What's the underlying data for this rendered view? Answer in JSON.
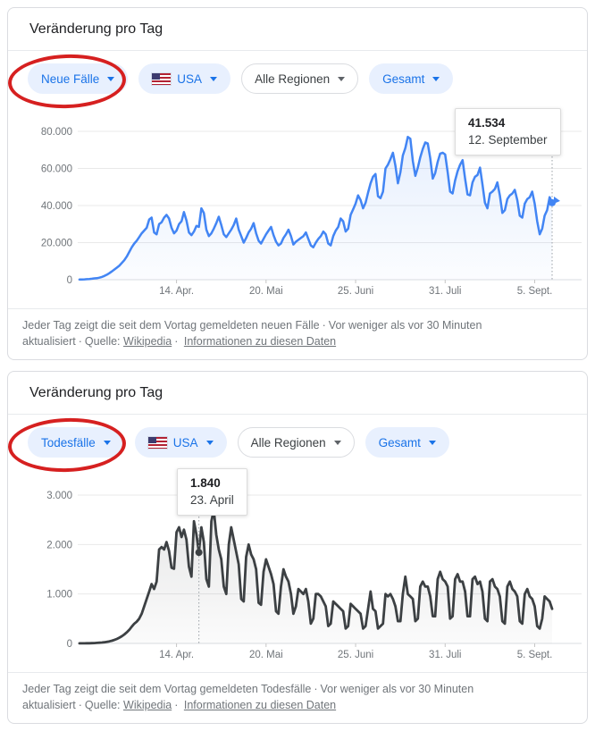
{
  "colors": {
    "cases_line": "#4285f4",
    "deaths_line": "#3c4043",
    "annotation_red": "#d62020",
    "pill_blue_bg": "#e8f0fe",
    "pill_blue_text": "#1a73e8",
    "grid": "#e9e9e9",
    "axis_text": "#70757a"
  },
  "cards": [
    {
      "title": "Veränderung pro Tag",
      "filters": {
        "metric": "Neue Fälle",
        "country": "USA",
        "region": "Alle Regionen",
        "scope": "Gesamt"
      },
      "tooltip": {
        "value": "41.534",
        "date": "12. September"
      },
      "footer": {
        "description": "Jeder Tag zeigt die seit dem Vortag gemeldeten neuen Fälle",
        "updated": "Vor weniger als vor 30 Minuten aktualisiert",
        "sep": "·",
        "source_label": "Quelle:",
        "source_link": "Wikipedia",
        "info_link": "Informationen zu diesen Daten"
      }
    },
    {
      "title": "Veränderung pro Tag",
      "filters": {
        "metric": "Todesfälle",
        "country": "USA",
        "region": "Alle Regionen",
        "scope": "Gesamt"
      },
      "tooltip": {
        "value": "1.840",
        "date": "23. April"
      },
      "footer": {
        "description": "Jeder Tag zeigt die seit dem Vortag gemeldeten Todesfälle",
        "updated": "Vor weniger als vor 30 Minuten aktualisiert",
        "sep": "·",
        "source_label": "Quelle:",
        "source_link": "Wikipedia",
        "info_link": "Informationen zu diesen Daten"
      }
    }
  ],
  "chart_data": [
    {
      "type": "area",
      "title": "Veränderung pro Tag — Neue Fälle, USA, Gesamt",
      "line_color": "#4285f4",
      "marker": "pointer",
      "ylim": [
        0,
        80000
      ],
      "yticks": [
        {
          "v": 0,
          "label": "0"
        },
        {
          "v": 20000,
          "label": "20.000"
        },
        {
          "v": 40000,
          "label": "40.000"
        },
        {
          "v": 60000,
          "label": "60.000"
        },
        {
          "v": 80000,
          "label": "80.000"
        }
      ],
      "xticks": [
        {
          "i": 39,
          "label": "14. Apr."
        },
        {
          "i": 75,
          "label": "20. Mai"
        },
        {
          "i": 111,
          "label": "25. Juni"
        },
        {
          "i": 147,
          "label": "31. Juli"
        },
        {
          "i": 183,
          "label": "5. Sept."
        }
      ],
      "highlight": {
        "index": 190,
        "value": 41534,
        "label_value": "41.534",
        "label_date": "12. September"
      },
      "values": [
        100,
        150,
        200,
        300,
        400,
        550,
        700,
        800,
        1100,
        1500,
        2000,
        2700,
        3500,
        4500,
        5500,
        6500,
        7500,
        9000,
        10500,
        12500,
        15000,
        17500,
        19500,
        21000,
        23000,
        25000,
        26500,
        28000,
        32500,
        33500,
        25500,
        24500,
        30000,
        31000,
        33500,
        35000,
        33000,
        28000,
        25000,
        26500,
        30000,
        31500,
        36500,
        32000,
        25500,
        24000,
        26000,
        29000,
        28500,
        38500,
        36000,
        27000,
        23500,
        25000,
        27500,
        30500,
        34000,
        29500,
        24500,
        23000,
        25000,
        27000,
        29500,
        33000,
        27000,
        23500,
        20000,
        22500,
        25500,
        27500,
        30500,
        25000,
        21000,
        19500,
        22000,
        24500,
        26500,
        28500,
        24000,
        20500,
        18500,
        19500,
        22500,
        24500,
        27000,
        23500,
        19000,
        20500,
        21500,
        22500,
        23500,
        25500,
        22000,
        18500,
        17500,
        20000,
        22000,
        23500,
        26000,
        24500,
        19500,
        18500,
        23500,
        26500,
        28500,
        33000,
        31500,
        26000,
        27500,
        35000,
        38000,
        41000,
        45500,
        43000,
        38500,
        41500,
        47000,
        52000,
        55500,
        57000,
        45000,
        44000,
        47500,
        60000,
        62000,
        65000,
        68500,
        61500,
        52000,
        58000,
        67000,
        71000,
        77000,
        76000,
        64000,
        56000,
        60500,
        66000,
        70500,
        74000,
        73500,
        65500,
        54500,
        57500,
        63500,
        68000,
        68500,
        67500,
        58000,
        47500,
        46500,
        53500,
        58500,
        62000,
        64500,
        54500,
        46000,
        45500,
        52500,
        55500,
        56500,
        60500,
        51500,
        41500,
        38500,
        46500,
        47500,
        49000,
        52500,
        45500,
        36000,
        37500,
        43500,
        45500,
        46500,
        48500,
        43000,
        34500,
        33500,
        41000,
        43500,
        44500,
        47500,
        41000,
        31500,
        24500,
        27500,
        34500,
        37500,
        44500,
        41534
      ]
    },
    {
      "type": "area",
      "title": "Veränderung pro Tag — Todesfälle, USA, Gesamt",
      "line_color": "#3c4043",
      "marker": "dot",
      "ylim": [
        0,
        3000
      ],
      "yticks": [
        {
          "v": 0,
          "label": "0"
        },
        {
          "v": 1000,
          "label": "1.000"
        },
        {
          "v": 2000,
          "label": "2.000"
        },
        {
          "v": 3000,
          "label": "3.000"
        }
      ],
      "xticks": [
        {
          "i": 39,
          "label": "14. Apr."
        },
        {
          "i": 75,
          "label": "20. Mai"
        },
        {
          "i": 111,
          "label": "25. Juni"
        },
        {
          "i": 147,
          "label": "31. Juli"
        },
        {
          "i": 183,
          "label": "5. Sept."
        }
      ],
      "highlight": {
        "index": 48,
        "value": 1840,
        "label_value": "1.840",
        "label_date": "23. April"
      },
      "values": [
        1,
        1,
        2,
        3,
        4,
        6,
        8,
        10,
        14,
        18,
        24,
        32,
        42,
        55,
        70,
        90,
        115,
        145,
        180,
        225,
        275,
        340,
        400,
        440,
        500,
        600,
        750,
        900,
        1050,
        1200,
        1100,
        1250,
        1900,
        1950,
        1900,
        2050,
        1870,
        1530,
        1510,
        2250,
        2350,
        2150,
        2300,
        2100,
        1550,
        1350,
        2470,
        2200,
        1840,
        2350,
        2050,
        1300,
        1150,
        2470,
        2700,
        2200,
        1900,
        1700,
        1150,
        1000,
        2000,
        2350,
        2100,
        1850,
        1600,
        900,
        850,
        1750,
        2000,
        1800,
        1700,
        1500,
        820,
        780,
        1450,
        1700,
        1550,
        1400,
        1200,
        650,
        600,
        1150,
        1500,
        1350,
        1250,
        1000,
        600,
        750,
        1100,
        1050,
        1000,
        1100,
        850,
        400,
        500,
        1000,
        1000,
        950,
        850,
        750,
        350,
        400,
        850,
        800,
        750,
        700,
        650,
        300,
        350,
        800,
        750,
        700,
        650,
        600,
        300,
        350,
        700,
        1050,
        700,
        650,
        300,
        350,
        400,
        1000,
        950,
        1000,
        900,
        750,
        450,
        450,
        1000,
        1350,
        1000,
        950,
        900,
        450,
        500,
        1150,
        1250,
        1150,
        1150,
        950,
        550,
        550,
        1300,
        1450,
        1300,
        1250,
        1150,
        500,
        550,
        1300,
        1400,
        1250,
        1250,
        1050,
        550,
        550,
        1300,
        1350,
        1200,
        1250,
        1050,
        500,
        450,
        1250,
        1300,
        1150,
        1100,
        950,
        450,
        400,
        1150,
        1250,
        1100,
        1050,
        950,
        450,
        400,
        1000,
        1100,
        950,
        900,
        750,
        350,
        300,
        500,
        950,
        900,
        850,
        700
      ]
    }
  ]
}
